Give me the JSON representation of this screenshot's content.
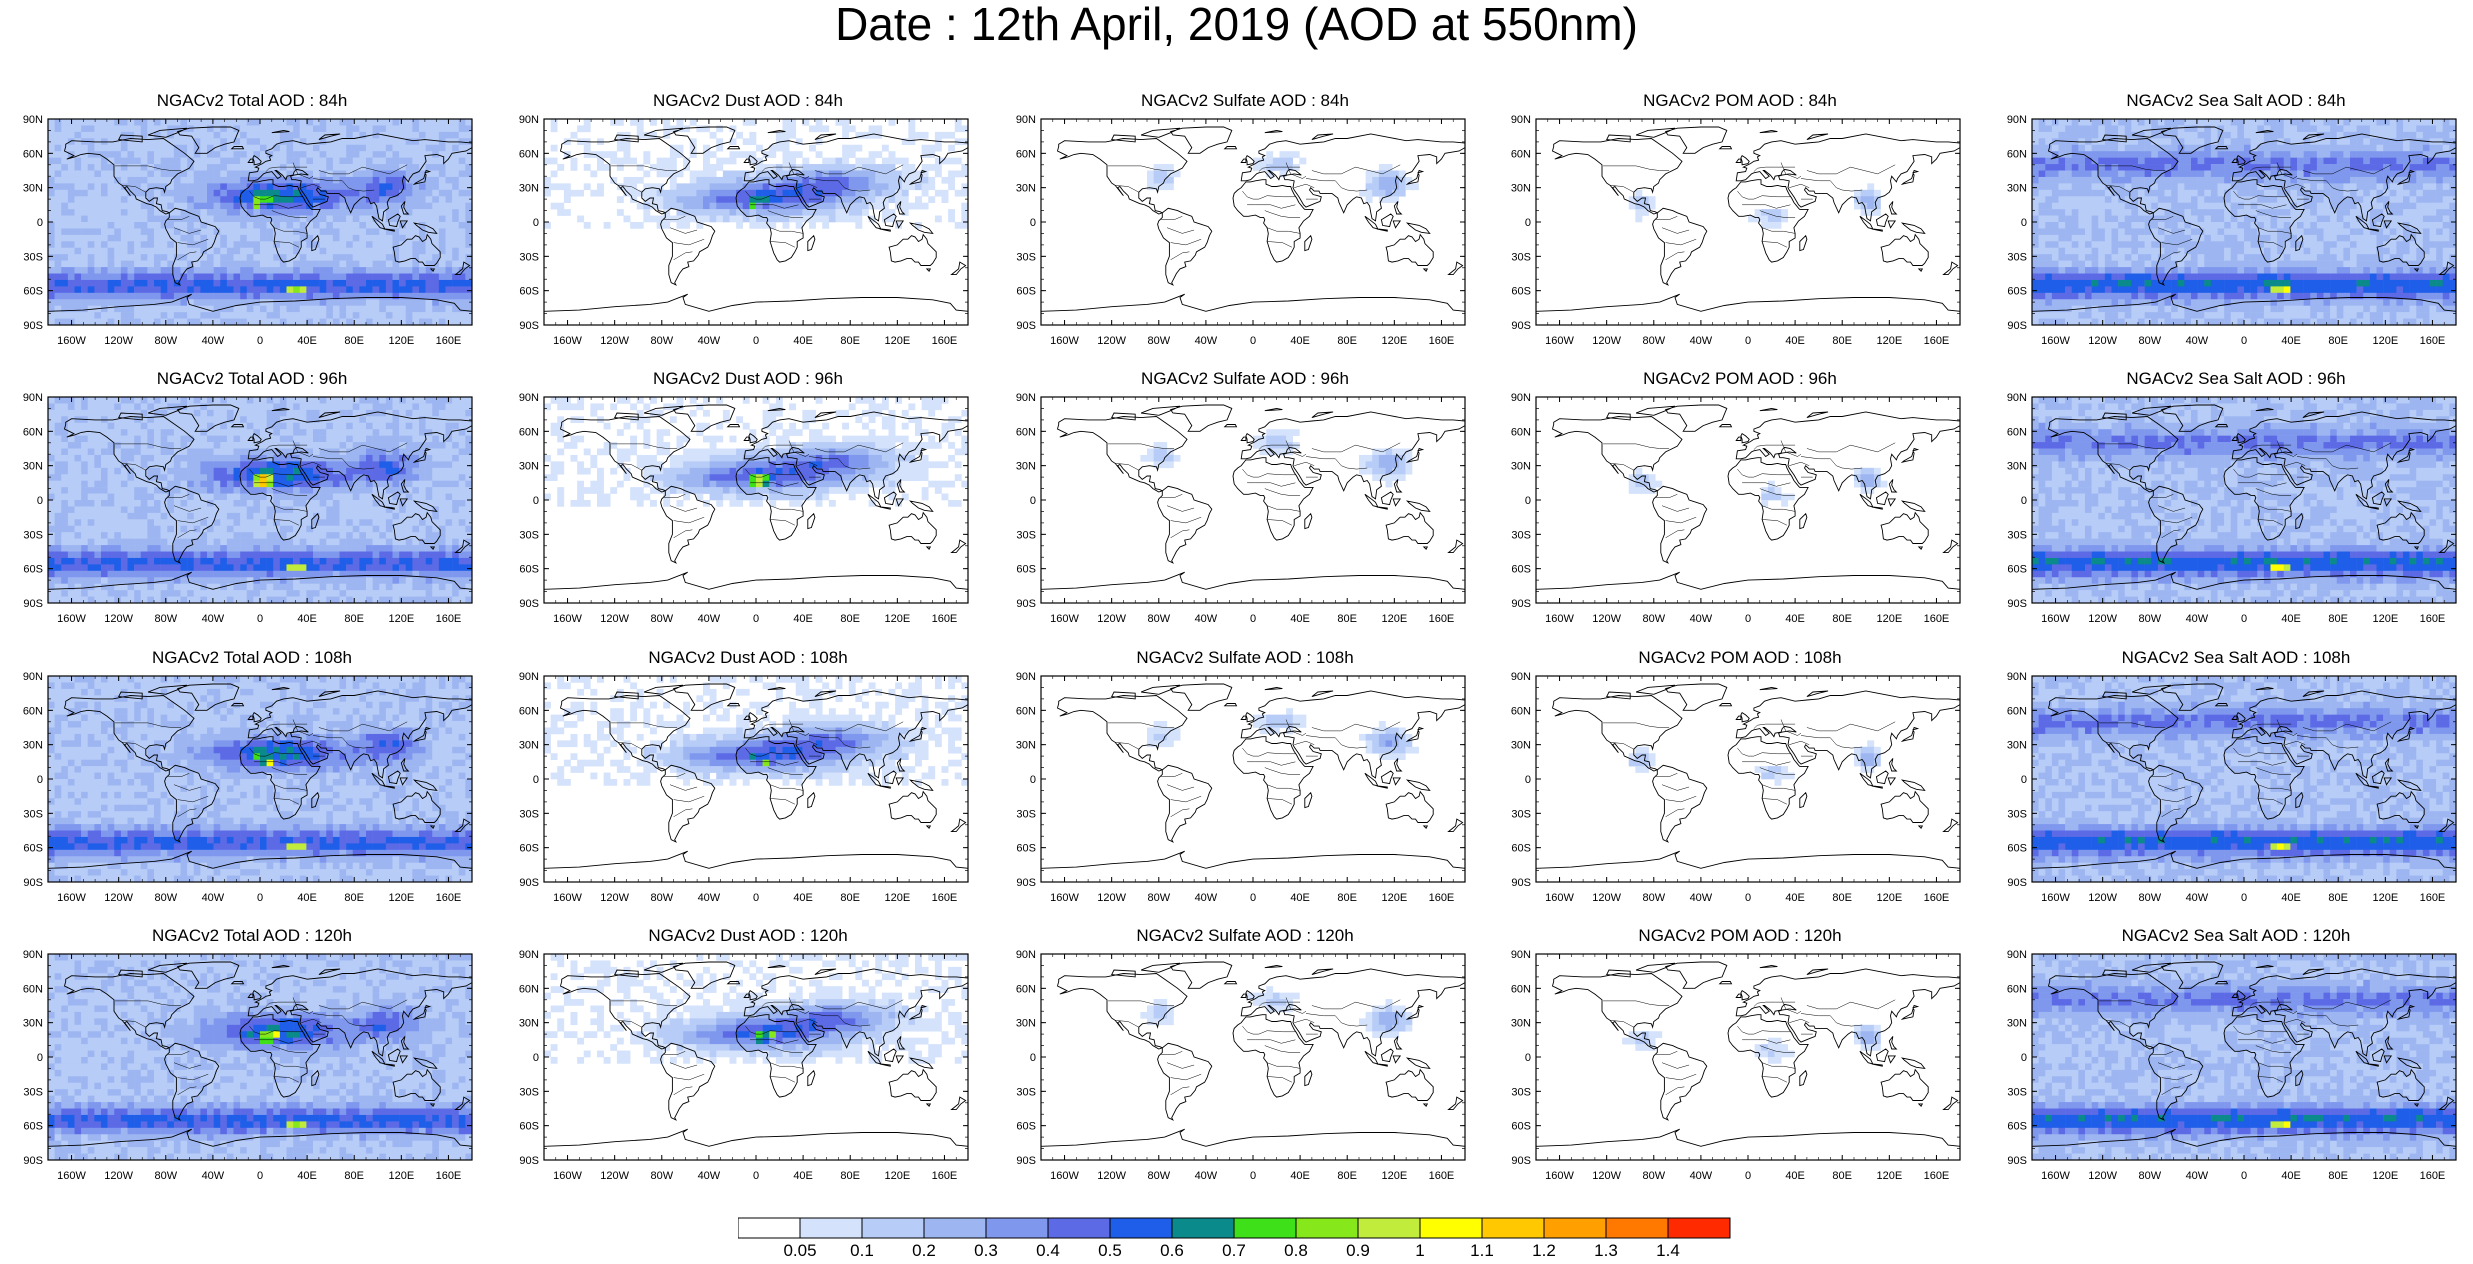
{
  "page": {
    "title": "Date : 12th April, 2019 (AOD at 550nm)"
  },
  "map": {
    "projection": "cylindrical equidistant (global)",
    "lat_ticks": [
      "90N",
      "60N",
      "30N",
      "0",
      "30S",
      "60S",
      "90S"
    ],
    "lon_ticks": [
      "160W",
      "120W",
      "80W",
      "40W",
      "0",
      "40E",
      "80E",
      "120E",
      "160E"
    ],
    "overlay": "coastlines and country borders"
  },
  "panels": [
    {
      "title": "NGACv2 Total AOD : 84h",
      "species": "total",
      "lead": "84h"
    },
    {
      "title": "NGACv2 Dust AOD : 84h",
      "species": "dust",
      "lead": "84h"
    },
    {
      "title": "NGACv2 Sulfate AOD : 84h",
      "species": "sulfate",
      "lead": "84h"
    },
    {
      "title": "NGACv2 POM AOD : 84h",
      "species": "pom",
      "lead": "84h"
    },
    {
      "title": "NGACv2 Sea Salt AOD : 84h",
      "species": "seasalt",
      "lead": "84h"
    },
    {
      "title": "NGACv2 Total AOD : 96h",
      "species": "total",
      "lead": "96h"
    },
    {
      "title": "NGACv2 Dust AOD : 96h",
      "species": "dust",
      "lead": "96h"
    },
    {
      "title": "NGACv2 Sulfate AOD : 96h",
      "species": "sulfate",
      "lead": "96h"
    },
    {
      "title": "NGACv2 POM AOD : 96h",
      "species": "pom",
      "lead": "96h"
    },
    {
      "title": "NGACv2 Sea Salt AOD : 96h",
      "species": "seasalt",
      "lead": "96h"
    },
    {
      "title": "NGACv2 Total AOD : 108h",
      "species": "total",
      "lead": "108h"
    },
    {
      "title": "NGACv2 Dust AOD : 108h",
      "species": "dust",
      "lead": "108h"
    },
    {
      "title": "NGACv2 Sulfate AOD : 108h",
      "species": "sulfate",
      "lead": "108h"
    },
    {
      "title": "NGACv2 POM AOD : 108h",
      "species": "pom",
      "lead": "108h"
    },
    {
      "title": "NGACv2 Sea Salt AOD : 108h",
      "species": "seasalt",
      "lead": "108h"
    },
    {
      "title": "NGACv2 Total AOD : 120h",
      "species": "total",
      "lead": "120h"
    },
    {
      "title": "NGACv2 Dust AOD : 120h",
      "species": "dust",
      "lead": "120h"
    },
    {
      "title": "NGACv2 Sulfate AOD : 120h",
      "species": "sulfate",
      "lead": "120h"
    },
    {
      "title": "NGACv2 POM AOD : 120h",
      "species": "pom",
      "lead": "120h"
    },
    {
      "title": "NGACv2 Sea Salt  AOD : 120h",
      "species": "seasalt",
      "lead": "120h"
    }
  ],
  "colorbar": {
    "levels": [
      "0.05",
      "0.1",
      "0.2",
      "0.3",
      "0.4",
      "0.5",
      "0.6",
      "0.7",
      "0.8",
      "0.9",
      "1",
      "1.1",
      "1.2",
      "1.3",
      "1.4"
    ],
    "colors": [
      "#ffffff",
      "#d4e2fb",
      "#b7ccf6",
      "#9db6f2",
      "#7f98ee",
      "#5c6ae6",
      "#1f5ee8",
      "#0a8a8a",
      "#3ee01a",
      "#86e81a",
      "#c2ec3c",
      "#ffff00",
      "#ffc800",
      "#ffa000",
      "#ff7800",
      "#ff2a00"
    ]
  }
}
